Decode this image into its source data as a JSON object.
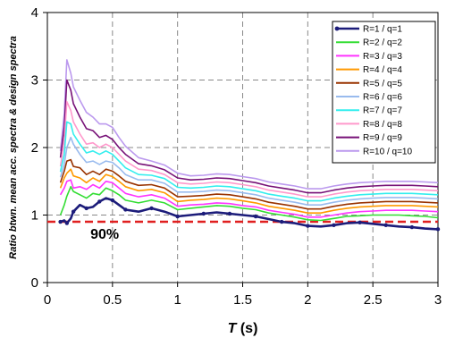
{
  "chart_data": {
    "type": "line",
    "title": "",
    "xlabel": {
      "italic": "T",
      "rest": " (s)"
    },
    "ylabel": "Ratio btwn. mean acc. spectra & design spectra",
    "xlim": [
      0,
      3
    ],
    "ylim": [
      0,
      4
    ],
    "xticks": [
      0,
      0.5,
      1,
      1.5,
      2,
      2.5,
      3
    ],
    "xtick_labels": [
      "0",
      "0.5",
      "1",
      "1.5",
      "2",
      "2.5",
      "3"
    ],
    "yticks": [
      0,
      1,
      2,
      3,
      4
    ],
    "ytick_labels": [
      "0",
      "1",
      "2",
      "3",
      "4"
    ],
    "grid": true,
    "legend_position": "top-right",
    "reference_line": {
      "y": 0.9,
      "color": "#e02020",
      "style": "dashed",
      "label": "90%"
    },
    "series": [
      {
        "name": "R=1 / q=1",
        "color": "#1c1c7a",
        "marker": true,
        "x": [
          0.1,
          0.13,
          0.15,
          0.18,
          0.2,
          0.25,
          0.3,
          0.35,
          0.4,
          0.45,
          0.5,
          0.55,
          0.6,
          0.7,
          0.8,
          0.9,
          1.0,
          1.1,
          1.2,
          1.3,
          1.4,
          1.5,
          1.6,
          1.7,
          1.8,
          1.9,
          2.0,
          2.1,
          2.2,
          2.3,
          2.4,
          2.5,
          2.6,
          2.7,
          2.8,
          2.9,
          3.0
        ],
        "y": [
          0.9,
          0.92,
          0.88,
          0.95,
          1.05,
          1.15,
          1.1,
          1.12,
          1.2,
          1.25,
          1.22,
          1.15,
          1.08,
          1.05,
          1.1,
          1.05,
          0.98,
          1.0,
          1.02,
          1.04,
          1.02,
          1.0,
          0.98,
          0.94,
          0.9,
          0.88,
          0.84,
          0.83,
          0.85,
          0.88,
          0.89,
          0.87,
          0.85,
          0.83,
          0.82,
          0.8,
          0.79
        ]
      },
      {
        "name": "R=2 / q=2",
        "color": "#33dd33",
        "marker": false,
        "x": [
          0.1,
          0.13,
          0.15,
          0.18,
          0.2,
          0.25,
          0.3,
          0.35,
          0.4,
          0.45,
          0.5,
          0.55,
          0.6,
          0.7,
          0.8,
          0.9,
          1.0,
          1.1,
          1.2,
          1.3,
          1.4,
          1.5,
          1.6,
          1.7,
          1.8,
          1.9,
          2.0,
          2.1,
          2.2,
          2.3,
          2.4,
          2.5,
          2.6,
          2.7,
          2.8,
          2.9,
          3.0
        ],
        "y": [
          1.0,
          1.15,
          1.28,
          1.42,
          1.35,
          1.3,
          1.25,
          1.32,
          1.3,
          1.4,
          1.36,
          1.3,
          1.22,
          1.18,
          1.22,
          1.18,
          1.08,
          1.1,
          1.12,
          1.14,
          1.13,
          1.1,
          1.08,
          1.03,
          1.0,
          0.97,
          0.93,
          0.92,
          0.95,
          0.98,
          0.99,
          1.0,
          1.0,
          1.0,
          0.99,
          0.98,
          0.96
        ]
      },
      {
        "name": "R=3 / q=3",
        "color": "#ff33ff",
        "marker": false,
        "x": [
          0.1,
          0.13,
          0.15,
          0.18,
          0.2,
          0.25,
          0.3,
          0.35,
          0.4,
          0.45,
          0.5,
          0.55,
          0.6,
          0.7,
          0.8,
          0.9,
          1.0,
          1.1,
          1.2,
          1.3,
          1.4,
          1.5,
          1.6,
          1.7,
          1.8,
          1.9,
          2.0,
          2.1,
          2.2,
          2.3,
          2.4,
          2.5,
          2.6,
          2.7,
          2.8,
          2.9,
          3.0
        ],
        "y": [
          1.3,
          1.4,
          1.5,
          1.52,
          1.4,
          1.42,
          1.38,
          1.45,
          1.4,
          1.5,
          1.48,
          1.4,
          1.32,
          1.27,
          1.3,
          1.25,
          1.13,
          1.15,
          1.16,
          1.18,
          1.17,
          1.14,
          1.12,
          1.07,
          1.04,
          1.01,
          0.97,
          0.97,
          1.0,
          1.03,
          1.05,
          1.06,
          1.07,
          1.07,
          1.07,
          1.06,
          1.05
        ]
      },
      {
        "name": "R=4 / q=4",
        "color": "#ff9900",
        "marker": false,
        "x": [
          0.1,
          0.13,
          0.15,
          0.18,
          0.2,
          0.25,
          0.3,
          0.35,
          0.4,
          0.45,
          0.5,
          0.55,
          0.6,
          0.7,
          0.8,
          0.9,
          1.0,
          1.1,
          1.2,
          1.3,
          1.4,
          1.5,
          1.6,
          1.7,
          1.8,
          1.9,
          2.0,
          2.1,
          2.2,
          2.3,
          2.4,
          2.5,
          2.6,
          2.7,
          2.8,
          2.9,
          3.0
        ],
        "y": [
          1.4,
          1.55,
          1.62,
          1.68,
          1.58,
          1.55,
          1.48,
          1.55,
          1.5,
          1.6,
          1.57,
          1.5,
          1.42,
          1.36,
          1.38,
          1.33,
          1.2,
          1.22,
          1.23,
          1.25,
          1.24,
          1.21,
          1.18,
          1.13,
          1.1,
          1.07,
          1.03,
          1.03,
          1.07,
          1.1,
          1.12,
          1.13,
          1.14,
          1.14,
          1.14,
          1.13,
          1.12
        ]
      },
      {
        "name": "R=5 / q=5",
        "color": "#993300",
        "marker": false,
        "x": [
          0.1,
          0.13,
          0.15,
          0.18,
          0.2,
          0.25,
          0.3,
          0.35,
          0.4,
          0.45,
          0.5,
          0.55,
          0.6,
          0.7,
          0.8,
          0.9,
          1.0,
          1.1,
          1.2,
          1.3,
          1.4,
          1.5,
          1.6,
          1.7,
          1.8,
          1.9,
          2.0,
          2.1,
          2.2,
          2.3,
          2.4,
          2.5,
          2.6,
          2.7,
          2.8,
          2.9,
          3.0
        ],
        "y": [
          1.48,
          1.65,
          1.8,
          1.82,
          1.72,
          1.7,
          1.6,
          1.65,
          1.6,
          1.68,
          1.65,
          1.58,
          1.5,
          1.44,
          1.45,
          1.4,
          1.27,
          1.28,
          1.29,
          1.31,
          1.3,
          1.27,
          1.24,
          1.19,
          1.16,
          1.13,
          1.09,
          1.09,
          1.13,
          1.16,
          1.18,
          1.19,
          1.2,
          1.2,
          1.2,
          1.19,
          1.18
        ]
      },
      {
        "name": "R=6 / q=6",
        "color": "#99bbee",
        "marker": false,
        "x": [
          0.1,
          0.13,
          0.15,
          0.18,
          0.2,
          0.25,
          0.3,
          0.35,
          0.4,
          0.45,
          0.5,
          0.55,
          0.6,
          0.7,
          0.8,
          0.9,
          1.0,
          1.1,
          1.2,
          1.3,
          1.4,
          1.5,
          1.6,
          1.7,
          1.8,
          1.9,
          2.0,
          2.1,
          2.2,
          2.3,
          2.4,
          2.5,
          2.6,
          2.7,
          2.8,
          2.9,
          3.0
        ],
        "y": [
          1.56,
          1.75,
          2.0,
          2.15,
          2.05,
          1.9,
          1.78,
          1.8,
          1.75,
          1.8,
          1.78,
          1.7,
          1.6,
          1.52,
          1.52,
          1.47,
          1.34,
          1.34,
          1.35,
          1.37,
          1.36,
          1.33,
          1.3,
          1.25,
          1.22,
          1.19,
          1.15,
          1.15,
          1.19,
          1.22,
          1.24,
          1.25,
          1.26,
          1.26,
          1.26,
          1.25,
          1.24
        ]
      },
      {
        "name": "R=7 / q=7",
        "color": "#33eeee",
        "marker": false,
        "x": [
          0.1,
          0.13,
          0.15,
          0.18,
          0.2,
          0.25,
          0.3,
          0.35,
          0.4,
          0.45,
          0.5,
          0.55,
          0.6,
          0.7,
          0.8,
          0.9,
          1.0,
          1.1,
          1.2,
          1.3,
          1.4,
          1.5,
          1.6,
          1.7,
          1.8,
          1.9,
          2.0,
          2.1,
          2.2,
          2.3,
          2.4,
          2.5,
          2.6,
          2.7,
          2.8,
          2.9,
          3.0
        ],
        "y": [
          1.64,
          1.9,
          2.38,
          2.35,
          2.2,
          2.05,
          1.92,
          1.95,
          1.9,
          1.95,
          1.9,
          1.8,
          1.7,
          1.6,
          1.59,
          1.54,
          1.41,
          1.4,
          1.41,
          1.43,
          1.42,
          1.39,
          1.36,
          1.31,
          1.28,
          1.25,
          1.21,
          1.21,
          1.25,
          1.28,
          1.3,
          1.31,
          1.32,
          1.32,
          1.32,
          1.31,
          1.3
        ]
      },
      {
        "name": "R=8 / q=8",
        "color": "#ff99cc",
        "marker": false,
        "x": [
          0.1,
          0.13,
          0.15,
          0.18,
          0.2,
          0.25,
          0.3,
          0.35,
          0.4,
          0.45,
          0.5,
          0.55,
          0.6,
          0.7,
          0.8,
          0.9,
          1.0,
          1.1,
          1.2,
          1.3,
          1.4,
          1.5,
          1.6,
          1.7,
          1.8,
          1.9,
          2.0,
          2.1,
          2.2,
          2.3,
          2.4,
          2.5,
          2.6,
          2.7,
          2.8,
          2.9,
          3.0
        ],
        "y": [
          1.72,
          2.1,
          2.68,
          2.55,
          2.38,
          2.2,
          2.05,
          2.07,
          2.0,
          2.05,
          2.0,
          1.9,
          1.8,
          1.68,
          1.66,
          1.6,
          1.48,
          1.46,
          1.47,
          1.49,
          1.48,
          1.45,
          1.42,
          1.37,
          1.34,
          1.31,
          1.27,
          1.27,
          1.31,
          1.34,
          1.36,
          1.37,
          1.38,
          1.38,
          1.38,
          1.37,
          1.36
        ]
      },
      {
        "name": "R=9 / q=9",
        "color": "#771177",
        "marker": false,
        "x": [
          0.1,
          0.13,
          0.15,
          0.18,
          0.2,
          0.25,
          0.3,
          0.35,
          0.4,
          0.45,
          0.5,
          0.55,
          0.6,
          0.7,
          0.8,
          0.9,
          1.0,
          1.1,
          1.2,
          1.3,
          1.4,
          1.5,
          1.6,
          1.7,
          1.8,
          1.9,
          2.0,
          2.1,
          2.2,
          2.3,
          2.4,
          2.5,
          2.6,
          2.7,
          2.8,
          2.9,
          3.0
        ],
        "y": [
          1.85,
          2.3,
          3.0,
          2.85,
          2.65,
          2.45,
          2.28,
          2.25,
          2.15,
          2.18,
          2.12,
          2.0,
          1.9,
          1.76,
          1.73,
          1.67,
          1.55,
          1.52,
          1.53,
          1.55,
          1.54,
          1.51,
          1.48,
          1.43,
          1.4,
          1.37,
          1.33,
          1.33,
          1.37,
          1.4,
          1.42,
          1.43,
          1.44,
          1.44,
          1.44,
          1.43,
          1.42
        ]
      },
      {
        "name": "R=10 / q=10",
        "color": "#bb99ee",
        "marker": false,
        "x": [
          0.1,
          0.13,
          0.15,
          0.18,
          0.2,
          0.25,
          0.3,
          0.35,
          0.4,
          0.45,
          0.5,
          0.55,
          0.6,
          0.7,
          0.8,
          0.9,
          1.0,
          1.1,
          1.2,
          1.3,
          1.4,
          1.5,
          1.6,
          1.7,
          1.8,
          1.9,
          2.0,
          2.1,
          2.2,
          2.3,
          2.4,
          2.5,
          2.6,
          2.7,
          2.8,
          2.9,
          3.0
        ],
        "y": [
          1.95,
          2.5,
          3.3,
          3.1,
          2.9,
          2.7,
          2.52,
          2.45,
          2.35,
          2.35,
          2.3,
          2.15,
          2.02,
          1.85,
          1.8,
          1.74,
          1.62,
          1.58,
          1.59,
          1.61,
          1.6,
          1.57,
          1.54,
          1.49,
          1.46,
          1.43,
          1.39,
          1.39,
          1.43,
          1.46,
          1.48,
          1.49,
          1.5,
          1.5,
          1.5,
          1.49,
          1.48
        ]
      }
    ]
  }
}
